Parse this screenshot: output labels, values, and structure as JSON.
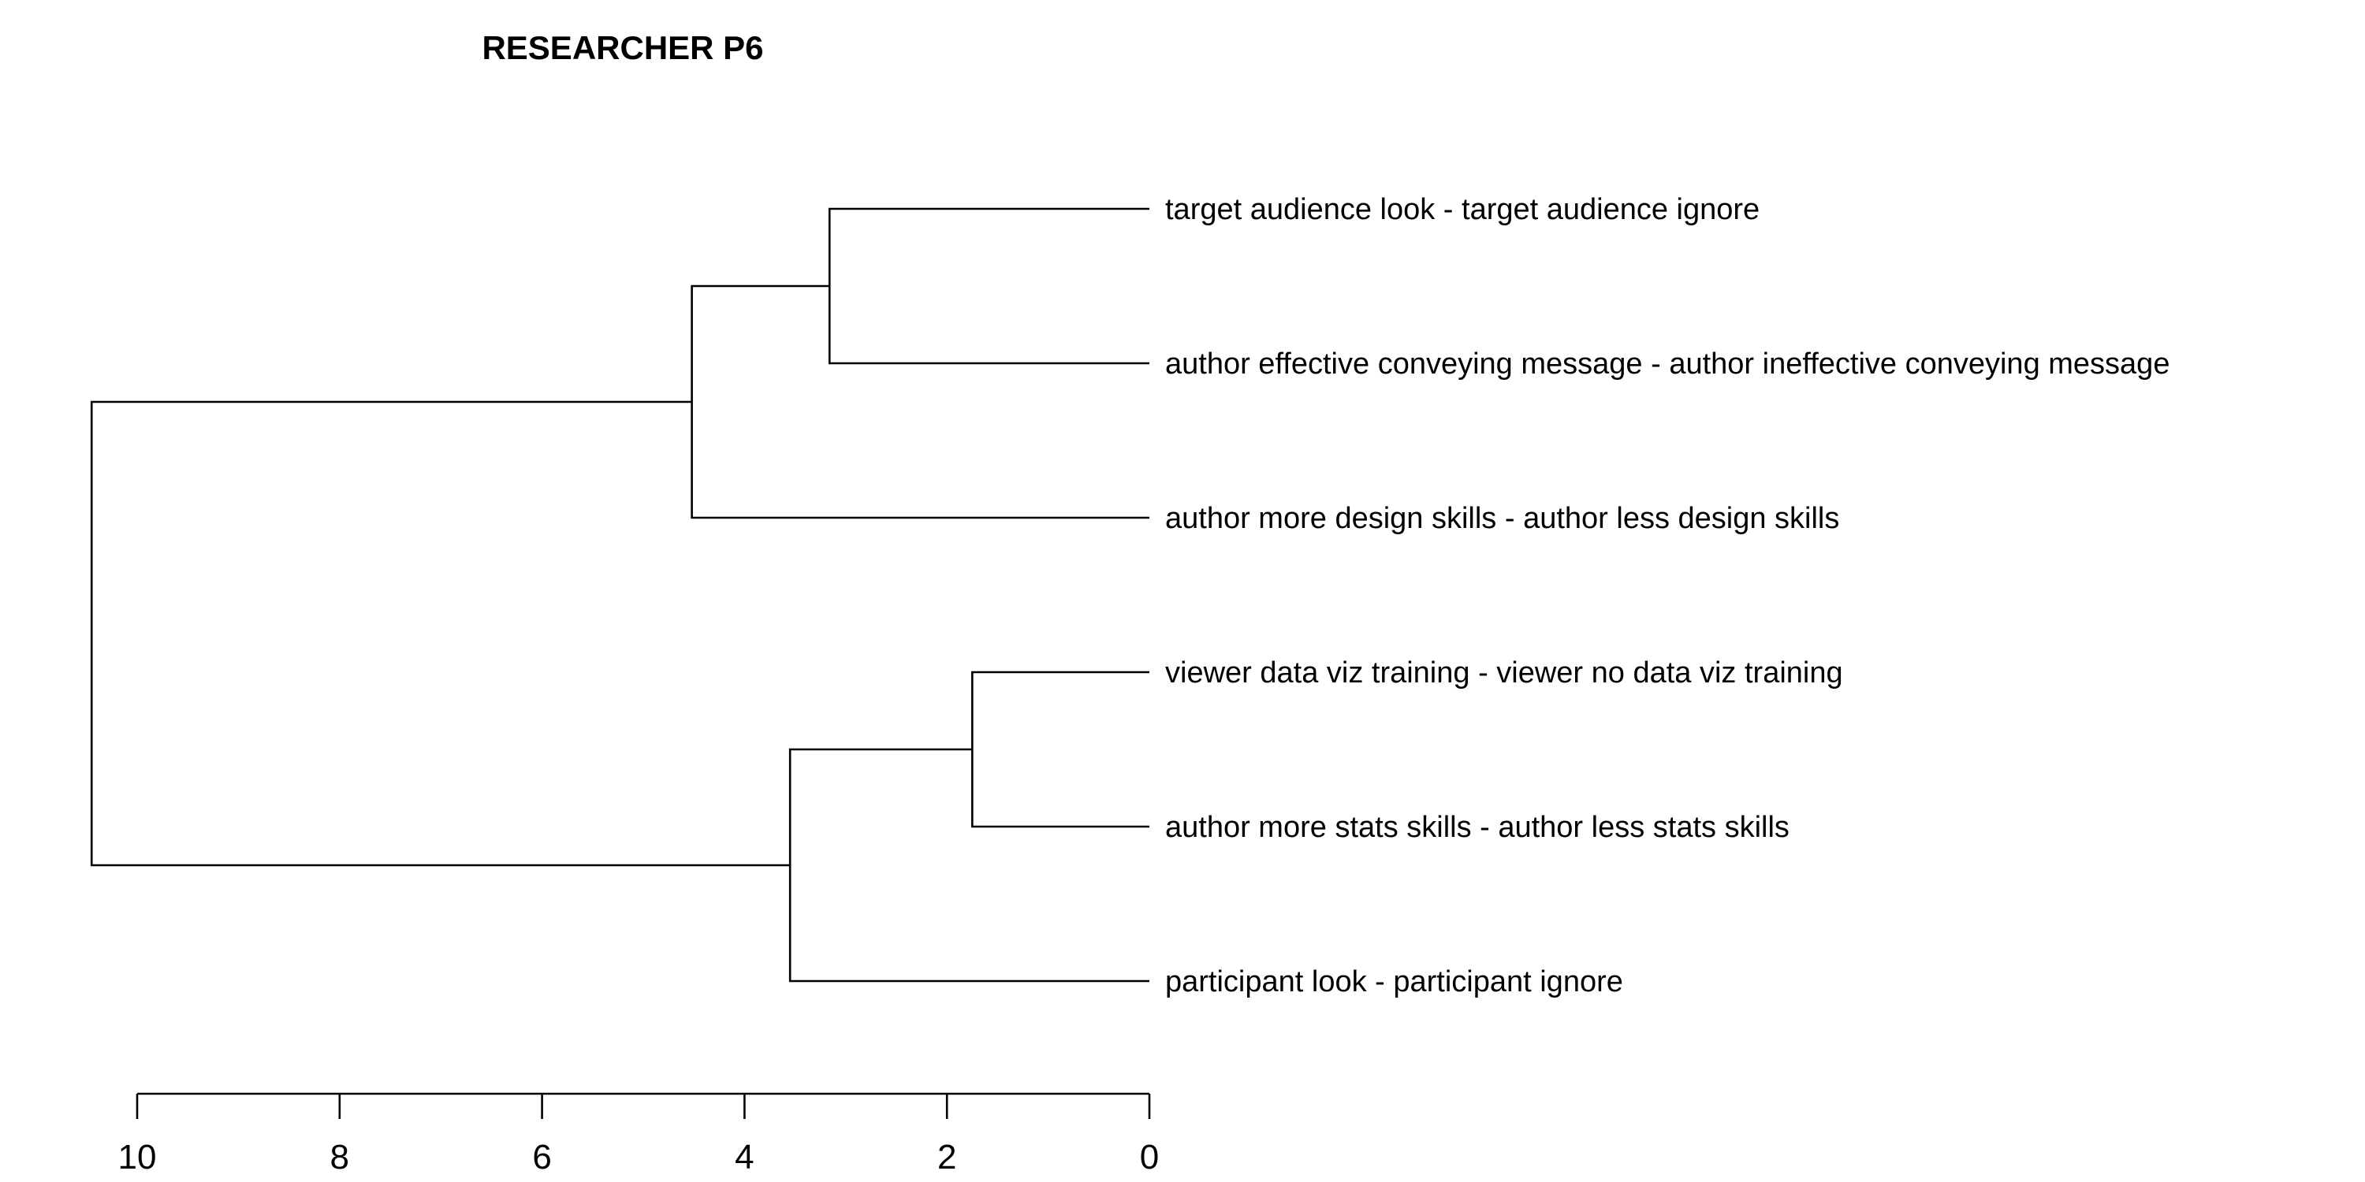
{
  "chart_data": {
    "type": "dendrogram",
    "title": "RESEARCHER P6",
    "orientation": "horizontal",
    "xlim": [
      10,
      0
    ],
    "axis_ticks": [
      10,
      8,
      6,
      4,
      2,
      0
    ],
    "tick_labels": [
      "10",
      "8",
      "6",
      "4",
      "2",
      "0"
    ],
    "leaves": [
      "target audience look - target audience ignore",
      "author effective  conveying message - author ineffective conveying message",
      "author more design skills - author  less design skills",
      "viewer data viz training - viewer no data viz training",
      "author more stats skills - author  less stats skills",
      "participant look - participant ignore"
    ],
    "merges": [
      {
        "id": "A",
        "left": "L0",
        "right": "L1",
        "height": 3.16
      },
      {
        "id": "B",
        "left": "A",
        "right": "L2",
        "height": 4.52
      },
      {
        "id": "C",
        "left": "L3",
        "right": "L4",
        "height": 1.75
      },
      {
        "id": "D",
        "left": "C",
        "right": "L5",
        "height": 3.55
      },
      {
        "id": "E",
        "left": "B",
        "right": "D",
        "height": 10.45
      }
    ],
    "colors": {
      "lines": "#000000",
      "text": "#000000",
      "background": "#ffffff"
    }
  }
}
